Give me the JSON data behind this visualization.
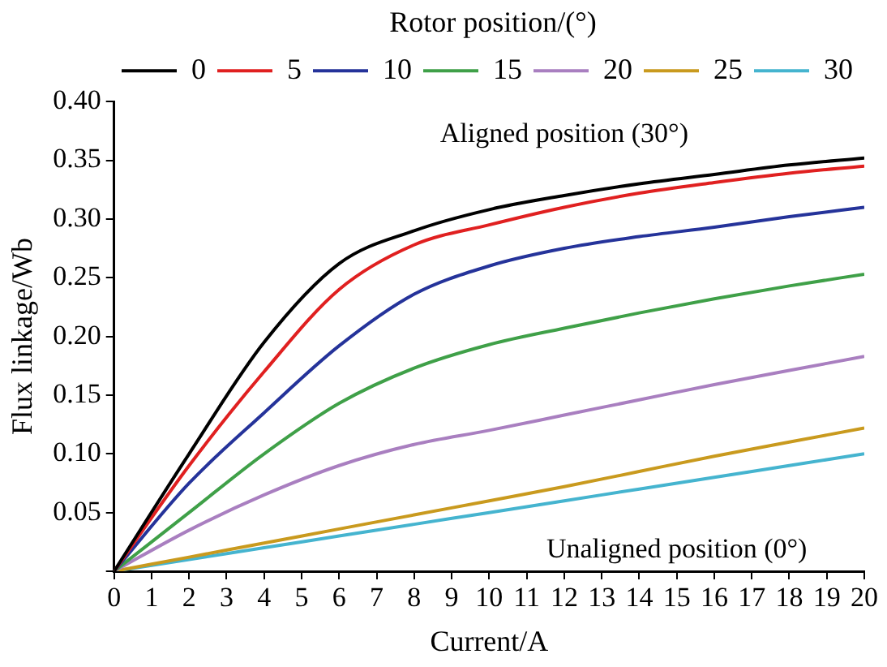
{
  "chart_data": {
    "type": "line",
    "xlabel": "Current/A",
    "ylabel": "Flux linkage/Wb",
    "legend_title": "Rotor position/(°)",
    "legend": "top",
    "grid": false,
    "marker": "none",
    "line_style": "solid",
    "x": [
      0,
      2,
      4,
      6,
      8,
      10,
      12,
      14,
      16,
      18,
      20
    ],
    "xlim": [
      0,
      20
    ],
    "xticks": [
      0,
      1,
      2,
      3,
      4,
      5,
      6,
      7,
      8,
      9,
      10,
      11,
      12,
      13,
      14,
      15,
      16,
      17,
      18,
      19,
      20
    ],
    "ylim": [
      0,
      0.4
    ],
    "yticks": [
      {
        "value": 0,
        "label": null
      },
      0.05,
      {
        "value": 0.1,
        "label": "0.10"
      },
      0.15,
      {
        "value": 0.2,
        "label": "0.20"
      },
      0.25,
      {
        "value": 0.3,
        "label": "0.30"
      },
      0.35,
      {
        "value": 0.4,
        "label": "0.40"
      }
    ],
    "series": [
      {
        "name": "0",
        "color": "#000000",
        "values": [
          0,
          0.1,
          0.195,
          0.262,
          0.29,
          0.308,
          0.32,
          0.33,
          0.338,
          0.346,
          0.352
        ]
      },
      {
        "name": "5",
        "color": "#e02020",
        "values": [
          0,
          0.09,
          0.17,
          0.24,
          0.278,
          0.295,
          0.31,
          0.322,
          0.331,
          0.339,
          0.345
        ]
      },
      {
        "name": "10",
        "color": "#25339a",
        "values": [
          0,
          0.075,
          0.135,
          0.192,
          0.236,
          0.26,
          0.275,
          0.285,
          0.293,
          0.302,
          0.31
        ]
      },
      {
        "name": "15",
        "color": "#3fa048",
        "values": [
          0,
          0.05,
          0.1,
          0.143,
          0.173,
          0.193,
          0.207,
          0.22,
          0.232,
          0.243,
          0.253
        ]
      },
      {
        "name": "20",
        "color": "#a97fc0",
        "values": [
          0,
          0.035,
          0.065,
          0.09,
          0.108,
          0.12,
          0.133,
          0.146,
          0.159,
          0.171,
          0.183
        ]
      },
      {
        "name": "25",
        "color": "#c99a1e",
        "values": [
          0,
          0.012,
          0.024,
          0.036,
          0.048,
          0.06,
          0.072,
          0.085,
          0.098,
          0.11,
          0.122
        ]
      },
      {
        "name": "30",
        "color": "#45b4cf",
        "values": [
          0,
          0.01,
          0.02,
          0.03,
          0.04,
          0.05,
          0.06,
          0.07,
          0.08,
          0.09,
          0.1
        ]
      }
    ],
    "annotations": [
      "Aligned position (30°)",
      "Unaligned position (0°)"
    ]
  }
}
